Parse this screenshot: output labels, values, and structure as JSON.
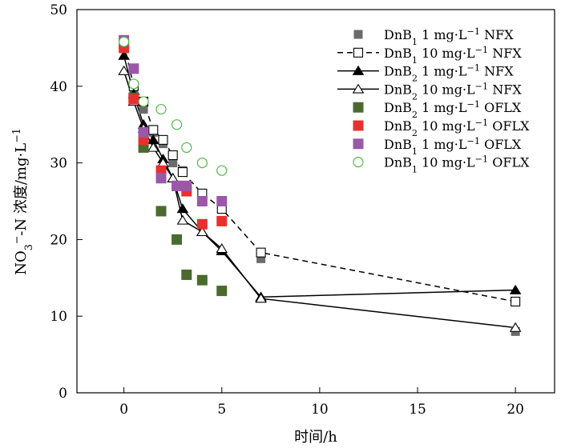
{
  "chart_data": {
    "type": "scatter",
    "xlabel": "时间/h",
    "ylabel": "NO3−-N 浓度/mg·L−1",
    "xlim": [
      -2.4,
      22.0
    ],
    "ylim": [
      0,
      50
    ],
    "x_ticks": [
      "0",
      "5",
      "10",
      "15",
      "20"
    ],
    "y_ticks": [
      "0",
      "10",
      "20",
      "30",
      "40",
      "50"
    ],
    "grid": false,
    "legend_position": "top-right",
    "series": [
      {
        "name": "DnB1 1 mg·L−1 NFX",
        "marker": "square-filled",
        "color": "#6b6b6b",
        "line": "none",
        "points": [
          [
            0,
            45.5
          ],
          [
            0.5,
            39.5
          ],
          [
            1,
            37.0
          ],
          [
            1.5,
            34.0
          ],
          [
            2,
            32.5
          ],
          [
            2.5,
            30.0
          ],
          [
            3,
            29.0
          ],
          [
            4,
            26.0
          ],
          [
            5,
            24.5
          ],
          [
            7,
            17.5
          ],
          [
            20,
            8.0
          ]
        ]
      },
      {
        "name": "DnB1 10 mg·L−1 NFX",
        "marker": "square-open",
        "color": "#000000",
        "line": "dashed",
        "points": [
          [
            0,
            45.5
          ],
          [
            0.5,
            40.0
          ],
          [
            1,
            38.0
          ],
          [
            1.5,
            34.3
          ],
          [
            2,
            33.0
          ],
          [
            2.5,
            31.0
          ],
          [
            3,
            28.8
          ],
          [
            4,
            26.0
          ],
          [
            5,
            24.0
          ],
          [
            7,
            18.3
          ],
          [
            20,
            11.9
          ]
        ]
      },
      {
        "name": "DnB2 1 mg·L−1 NFX",
        "marker": "triangle-filled",
        "color": "#000000",
        "line": "solid",
        "points": [
          [
            0,
            44.0
          ],
          [
            0.5,
            39.0
          ],
          [
            1,
            35.0
          ],
          [
            1.5,
            33.0
          ],
          [
            2,
            30.5
          ],
          [
            2.5,
            28.0
          ],
          [
            3,
            24.0
          ],
          [
            4,
            21.0
          ],
          [
            5,
            18.5
          ],
          [
            7,
            12.5
          ],
          [
            20,
            13.4
          ]
        ]
      },
      {
        "name": "DnB2 10 mg·L−1 NFX",
        "marker": "triangle-open",
        "color": "#000000",
        "line": "solid",
        "points": [
          [
            0,
            42.0
          ],
          [
            0.5,
            38.0
          ],
          [
            1,
            34.5
          ],
          [
            1.5,
            32.0
          ],
          [
            2,
            30.0
          ],
          [
            2.5,
            28.0
          ],
          [
            3,
            22.5
          ],
          [
            4,
            21.0
          ],
          [
            5,
            18.8
          ],
          [
            7,
            12.3
          ],
          [
            20,
            8.5
          ]
        ]
      },
      {
        "name": "DnB2 1 mg·L−1 OFLX",
        "marker": "square-filled",
        "color": "#4a6b2d",
        "line": "none",
        "points": [
          [
            0,
            45.5
          ],
          [
            0.5,
            38.5
          ],
          [
            1,
            32.0
          ],
          [
            1.9,
            23.7
          ],
          [
            2.7,
            20.0
          ],
          [
            3.2,
            15.4
          ],
          [
            4,
            14.7
          ],
          [
            5,
            13.3
          ]
        ]
      },
      {
        "name": "DnB2 10 mg·L−1 OFLX",
        "marker": "square-filled",
        "color": "#e8312f",
        "line": "none",
        "points": [
          [
            0,
            45.0
          ],
          [
            0.5,
            38.3
          ],
          [
            1,
            33.0
          ],
          [
            1.9,
            29.0
          ],
          [
            2.7,
            27.0
          ],
          [
            3.2,
            26.3
          ],
          [
            4,
            22.0
          ],
          [
            5,
            22.4
          ]
        ]
      },
      {
        "name": "DnB1 1 mg·L−1 OFLX",
        "marker": "square-filled",
        "color": "#9a58a8",
        "line": "none",
        "points": [
          [
            0,
            46.0
          ],
          [
            0.5,
            42.3
          ],
          [
            1,
            34.0
          ],
          [
            1.9,
            28.0
          ],
          [
            2.7,
            27.0
          ],
          [
            3.2,
            27.0
          ],
          [
            4,
            25.0
          ],
          [
            5,
            25.0
          ]
        ]
      },
      {
        "name": "DnB1 10 mg·L−1 OFLX",
        "marker": "circle-open",
        "color": "#54b948",
        "line": "none",
        "points": [
          [
            0,
            45.8
          ],
          [
            0.5,
            40.3
          ],
          [
            1,
            38.0
          ],
          [
            1.9,
            37.0
          ],
          [
            2.7,
            35.0
          ],
          [
            3.2,
            32.0
          ],
          [
            4,
            30.0
          ],
          [
            5,
            29.0
          ]
        ]
      }
    ]
  }
}
